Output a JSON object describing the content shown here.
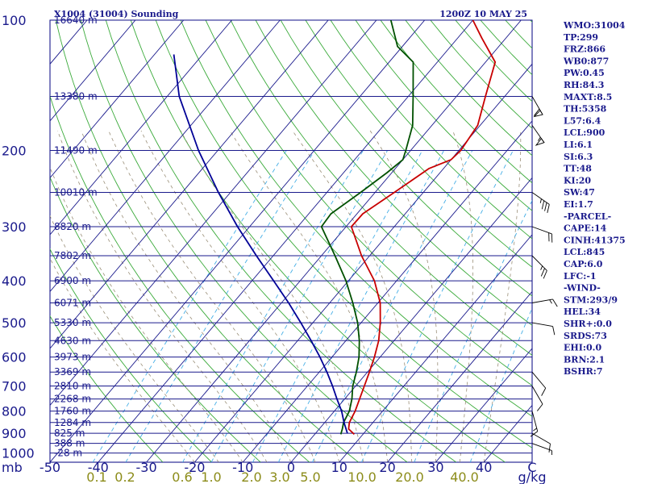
{
  "chart_data": {
    "type": "line",
    "title_left": "X1004 (31004) Sounding",
    "title_right": "1200Z 10 MAY 25",
    "pressure_levels": [
      {
        "p": 100,
        "label": "100",
        "height": "16640 m"
      },
      {
        "p": 150,
        "label": "",
        "height": "13380 m"
      },
      {
        "p": 200,
        "label": "200",
        "height": "11490 m"
      },
      {
        "p": 250,
        "label": "",
        "height": "10010 m"
      },
      {
        "p": 300,
        "label": "300",
        "height": "8820 m"
      },
      {
        "p": 350,
        "label": "",
        "height": "7802 m"
      },
      {
        "p": 400,
        "label": "400",
        "height": "6900 m"
      },
      {
        "p": 450,
        "label": "",
        "height": "6071 m"
      },
      {
        "p": 500,
        "label": "500",
        "height": "5330 m"
      },
      {
        "p": 550,
        "label": "",
        "height": "4630 m"
      },
      {
        "p": 600,
        "label": "600",
        "height": "3973 m"
      },
      {
        "p": 650,
        "label": "",
        "height": "3369 m"
      },
      {
        "p": 700,
        "label": "700",
        "height": "2810 m"
      },
      {
        "p": 750,
        "label": "",
        "height": "2268 m"
      },
      {
        "p": 800,
        "label": "800",
        "height": "1760 m"
      },
      {
        "p": 850,
        "label": "",
        "height": "1284 m"
      },
      {
        "p": 900,
        "label": "900",
        "height": "825 m"
      },
      {
        "p": 950,
        "label": "",
        "height": "388 m"
      },
      {
        "p": 1000,
        "label": "1000",
        "height": "-28 m"
      }
    ],
    "pressure_unit": "mb",
    "temperature_ticks": [
      "-50",
      "-40",
      "-30",
      "-20",
      "-10",
      "0",
      "10",
      "20",
      "30",
      "40"
    ],
    "temperature_unit": "C",
    "mixing_ratio_ticks": [
      "0.1",
      "0.2",
      "0.6",
      "1.0",
      "2.0",
      "3.0",
      "5.0",
      "10.0",
      "20.0",
      "40.0"
    ],
    "mixing_ratio_unit": "g/kg",
    "xlim": [
      -50,
      50
    ],
    "ylim": [
      1050,
      100
    ],
    "series": [
      {
        "key": "temperature",
        "color": "#c80000",
        "points": [
          [
            905,
            8.2
          ],
          [
            880,
            6.1
          ],
          [
            850,
            5.1
          ],
          [
            800,
            4.3
          ],
          [
            750,
            3.1
          ],
          [
            700,
            1.8
          ],
          [
            650,
            0.4
          ],
          [
            600,
            -1.2
          ],
          [
            550,
            -3.2
          ],
          [
            500,
            -6.0
          ],
          [
            450,
            -9.5
          ],
          [
            400,
            -14.6
          ],
          [
            350,
            -21.7
          ],
          [
            300,
            -28.9
          ],
          [
            280,
            -28.8
          ],
          [
            250,
            -26.0
          ],
          [
            220,
            -23.0
          ],
          [
            210,
            -20.0
          ],
          [
            200,
            -19.6
          ],
          [
            175,
            -20.5
          ],
          [
            150,
            -24.0
          ],
          [
            125,
            -28.0
          ],
          [
            110,
            -35.0
          ],
          [
            100,
            -40.0
          ]
        ]
      },
      {
        "key": "dewpoint",
        "color": "#005000",
        "points": [
          [
            905,
            5.4
          ],
          [
            880,
            4.8
          ],
          [
            850,
            3.9
          ],
          [
            800,
            3.1
          ],
          [
            750,
            1.5
          ],
          [
            700,
            -0.6
          ],
          [
            650,
            -2.3
          ],
          [
            600,
            -4.4
          ],
          [
            550,
            -7.2
          ],
          [
            500,
            -10.7
          ],
          [
            450,
            -15.2
          ],
          [
            400,
            -20.5
          ],
          [
            350,
            -27.2
          ],
          [
            300,
            -35.1
          ],
          [
            280,
            -35.4
          ],
          [
            250,
            -33.0
          ],
          [
            225,
            -31.0
          ],
          [
            210,
            -30.0
          ],
          [
            200,
            -31.0
          ],
          [
            175,
            -34.0
          ],
          [
            150,
            -39.0
          ],
          [
            125,
            -45.0
          ],
          [
            115,
            -51.0
          ],
          [
            100,
            -57.0
          ]
        ]
      },
      {
        "key": "parcel",
        "color": "#000096",
        "points": [
          [
            900,
            6.6
          ],
          [
            850,
            4.0
          ],
          [
            800,
            1.5
          ],
          [
            750,
            -1.6
          ],
          [
            700,
            -4.8
          ],
          [
            650,
            -8.4
          ],
          [
            600,
            -12.5
          ],
          [
            550,
            -17.2
          ],
          [
            500,
            -22.5
          ],
          [
            450,
            -28.5
          ],
          [
            400,
            -35.5
          ],
          [
            350,
            -43.5
          ],
          [
            300,
            -52.5
          ],
          [
            250,
            -62.5
          ],
          [
            200,
            -74.0
          ],
          [
            150,
            -87.5
          ],
          [
            120,
            -96.0
          ]
        ]
      }
    ],
    "wind_barbs": [
      {
        "p": 150,
        "dir": 330,
        "spd": 60
      },
      {
        "p": 175,
        "dir": 325,
        "spd": 55
      },
      {
        "p": 250,
        "dir": 305,
        "spd": 35
      },
      {
        "p": 300,
        "dir": 290,
        "spd": 20
      },
      {
        "p": 350,
        "dir": 315,
        "spd": 25
      },
      {
        "p": 450,
        "dir": 260,
        "spd": 15
      },
      {
        "p": 500,
        "dir": 280,
        "spd": 10
      },
      {
        "p": 650,
        "dir": 320,
        "spd": 10
      },
      {
        "p": 700,
        "dir": 330,
        "spd": 10
      },
      {
        "p": 800,
        "dir": 345,
        "spd": 15
      },
      {
        "p": 900,
        "dir": 300,
        "spd": 10
      },
      {
        "p": 950,
        "dir": 290,
        "spd": 5
      }
    ],
    "indices": [
      "WMO:31004",
      "TP:299",
      "FRZ:866",
      "WB0:877",
      "PW:0.45",
      "RH:84.3",
      "MAXT:8.5",
      "TH:5358",
      "L57:6.4",
      "LCL:900",
      "LI:6.1",
      "SI:6.3",
      "TT:48",
      "KI:20",
      "SW:47",
      "EI:1.7",
      "-PARCEL-",
      "CAPE:14",
      "CINH:41375",
      "LCL:845",
      "CAP:6.0",
      "LFC:-1",
      "-WIND-",
      "STM:293/9",
      "HEL:34",
      "SHR+:0.0",
      "SRDS:73",
      "EHI:0.0",
      "BRN:2.1",
      "BSHR:7"
    ]
  }
}
